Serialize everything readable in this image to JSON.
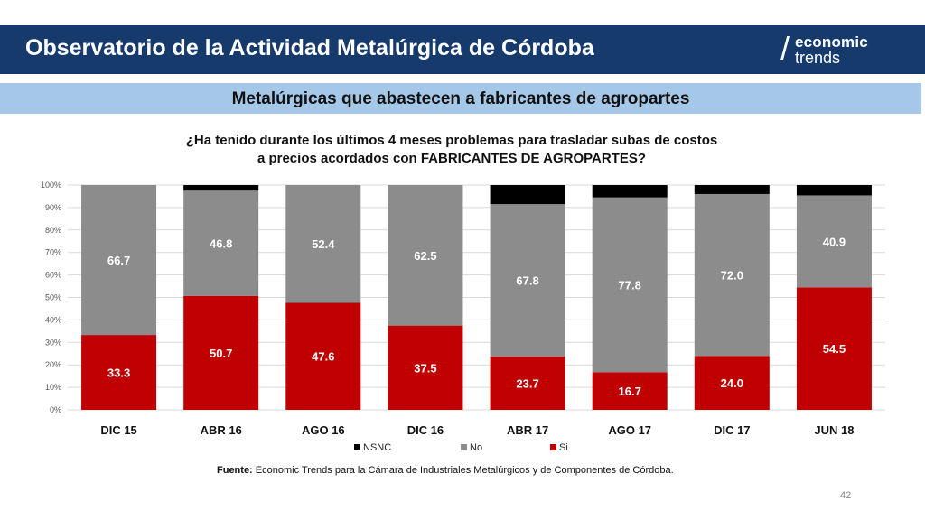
{
  "header": {
    "title": "Observatorio de la Actividad Metalúrgica de Córdoba"
  },
  "logo": {
    "line1": "economic",
    "line2": "trends",
    "slash": "/"
  },
  "subheader": {
    "title": "Metalúrgicas que abastecen a fabricantes de agropartes"
  },
  "question": {
    "line1": "¿Ha tenido durante los últimos 4 meses problemas para trasladar subas de costos",
    "line2": "a precios acordados con FABRICANTES DE AGROPARTES?"
  },
  "source": {
    "label": "Fuente:",
    "text": " Economic Trends para la Cámara de Industriales Metalúrgicos y de Componentes de Córdoba."
  },
  "page_number": "42",
  "colors": {
    "si": "#c00000",
    "no": "#8c8c8c",
    "nsnc": "#000000",
    "header_bg": "#153a6b",
    "subheader_bg": "#a6c8e8"
  },
  "chart_data": {
    "type": "bar",
    "stacked": true,
    "percent": true,
    "categories": [
      "DIC 15",
      "ABR 16",
      "AGO 16",
      "DIC 16",
      "ABR 17",
      "AGO 17",
      "DIC 17",
      "JUN 18"
    ],
    "series": [
      {
        "name": "Si",
        "values": [
          33.3,
          50.7,
          47.6,
          37.5,
          23.7,
          16.7,
          24.0,
          54.5
        ],
        "labels": [
          "33.3",
          "50.7",
          "47.6",
          "37.5",
          "23.7",
          "16.7",
          "24.0",
          "54.5"
        ],
        "color": "#c00000"
      },
      {
        "name": "No",
        "values": [
          66.7,
          46.8,
          52.4,
          62.5,
          67.8,
          77.8,
          72.0,
          40.9
        ],
        "labels": [
          "66.7",
          "46.8",
          "52.4",
          "62.5",
          "67.8",
          "77.8",
          "72.0",
          "40.9"
        ],
        "color": "#8c8c8c"
      },
      {
        "name": "NSNC",
        "values": [
          0.0,
          2.5,
          0.0,
          0.0,
          8.5,
          5.5,
          4.0,
          4.6
        ],
        "color": "#000000"
      }
    ],
    "legend_order": [
      "NSNC",
      "No",
      "Si"
    ],
    "legend_position": "bottom",
    "ylim": [
      0,
      100
    ],
    "yticks": [
      "0%",
      "10%",
      "20%",
      "30%",
      "40%",
      "50%",
      "60%",
      "70%",
      "80%",
      "90%",
      "100%"
    ],
    "grid": true
  }
}
